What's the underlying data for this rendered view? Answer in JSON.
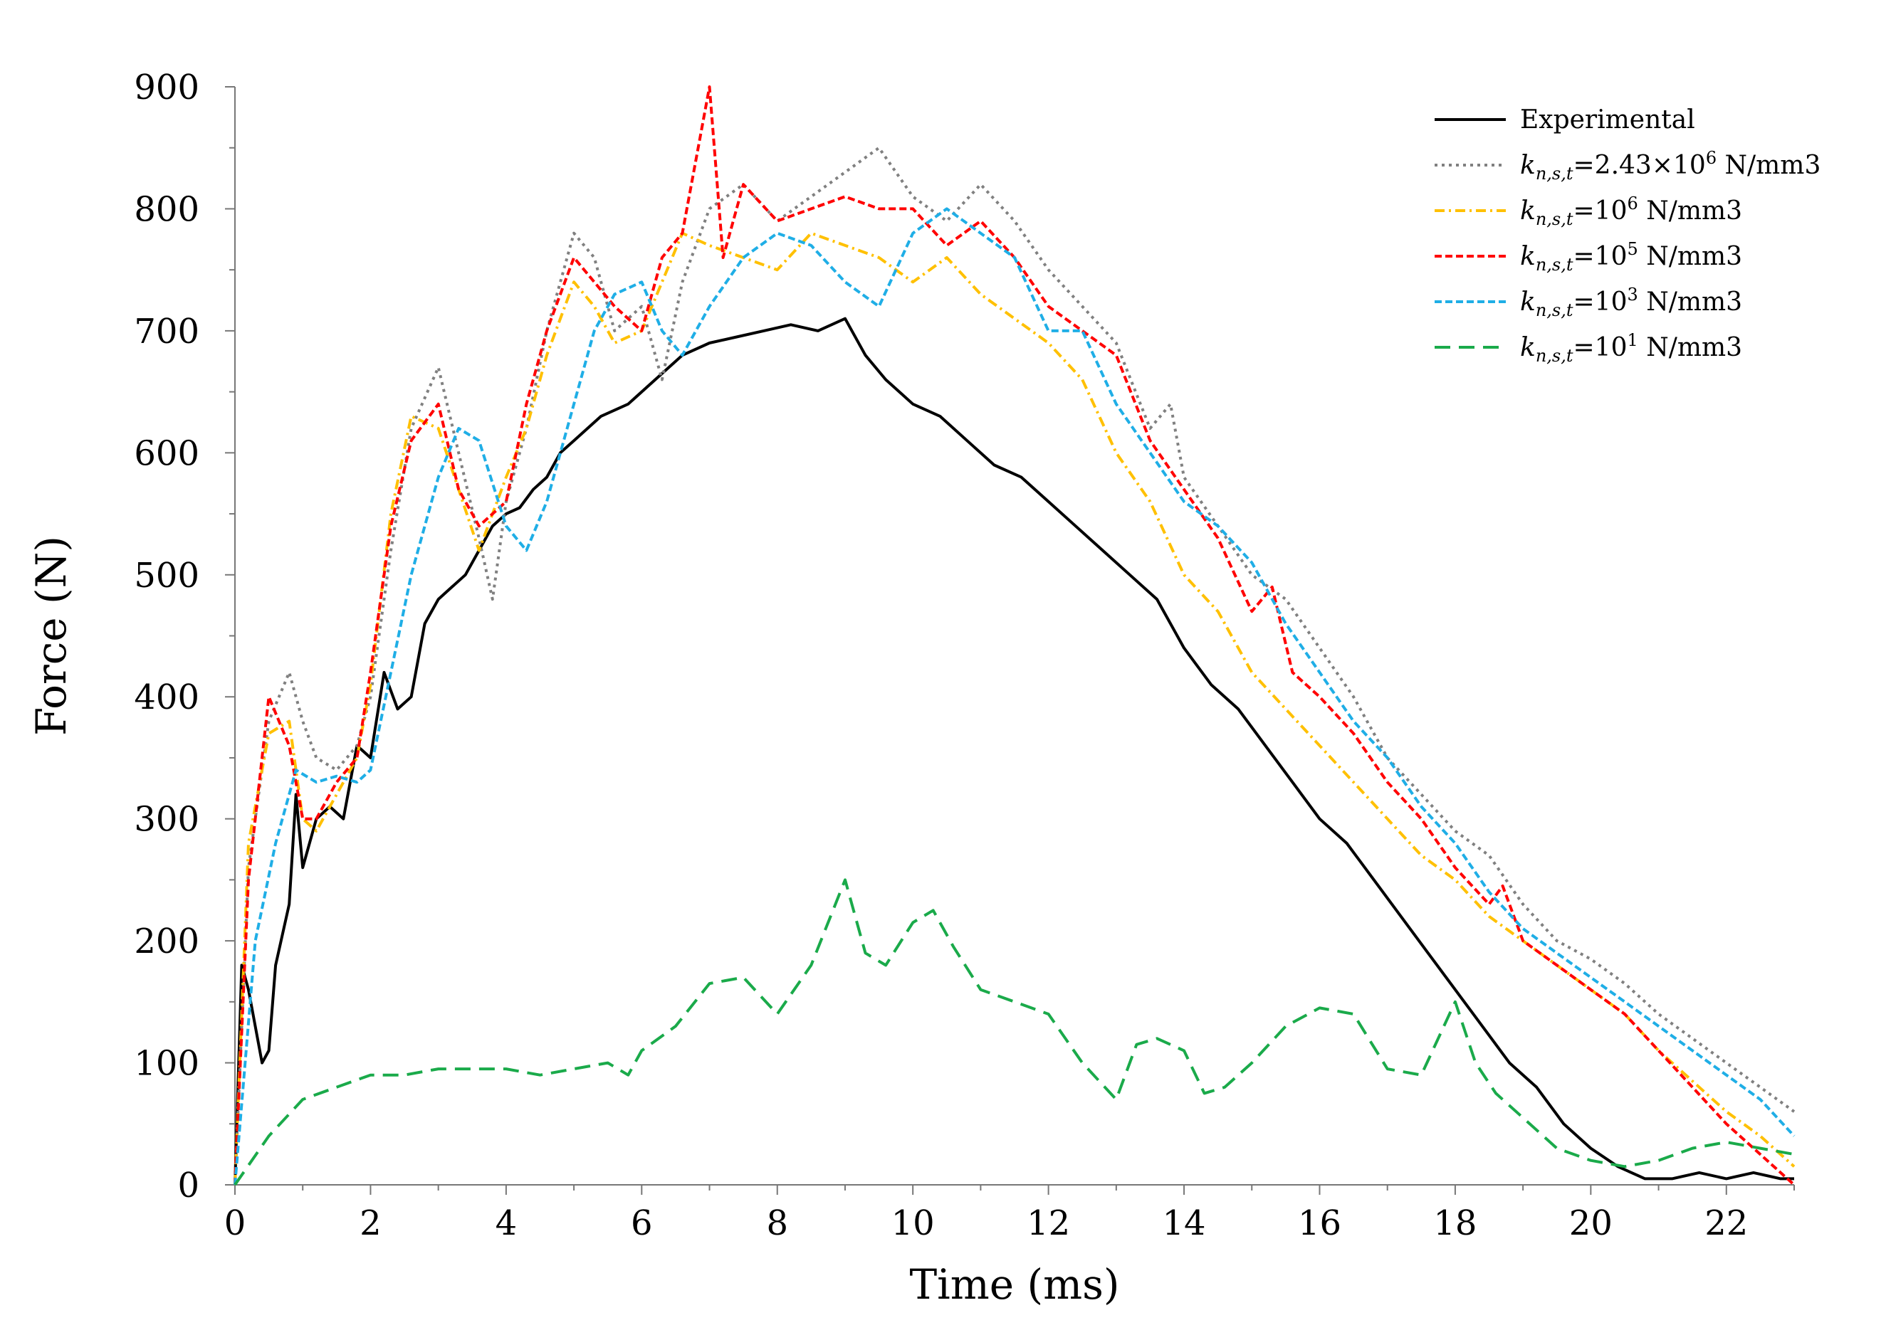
{
  "chart_data": {
    "type": "line",
    "title": "",
    "xlabel": "Time (ms)",
    "ylabel": "Force (N)",
    "xlim": [
      0,
      23
    ],
    "ylim": [
      0,
      900
    ],
    "xticks": [
      0,
      2,
      4,
      6,
      8,
      10,
      12,
      14,
      16,
      18,
      20,
      22
    ],
    "yticks": [
      0,
      100,
      200,
      300,
      400,
      500,
      600,
      700,
      800,
      900
    ],
    "xtick_labels": [
      "0",
      "2",
      "4",
      "6",
      "8",
      "10",
      "12",
      "14",
      "16",
      "18",
      "20",
      "22"
    ],
    "ytick_labels": [
      "0",
      "100",
      "200",
      "300",
      "400",
      "500",
      "600",
      "700",
      "800",
      "900"
    ],
    "grid": false,
    "legend_position": "top-right",
    "series": [
      {
        "name": "Experimental",
        "legend": {
          "k": "k",
          "sub": "",
          "mid": "Experimental",
          "sup": "",
          "tail": ""
        },
        "color": "#000000",
        "dash": "",
        "width": 4,
        "x": [
          0,
          0.1,
          0.2,
          0.4,
          0.5,
          0.6,
          0.8,
          0.9,
          1.0,
          1.2,
          1.4,
          1.6,
          1.8,
          2.0,
          2.2,
          2.4,
          2.6,
          2.8,
          3.0,
          3.2,
          3.4,
          3.6,
          3.8,
          4.0,
          4.2,
          4.4,
          4.6,
          4.8,
          5.0,
          5.4,
          5.8,
          6.2,
          6.6,
          7.0,
          7.4,
          7.8,
          8.2,
          8.6,
          9.0,
          9.3,
          9.6,
          10.0,
          10.4,
          10.8,
          11.2,
          11.6,
          12.0,
          12.4,
          12.8,
          13.2,
          13.6,
          14.0,
          14.4,
          14.8,
          15.2,
          15.6,
          16.0,
          16.4,
          16.8,
          17.2,
          17.6,
          18.0,
          18.4,
          18.8,
          19.2,
          19.6,
          20.0,
          20.4,
          20.8,
          21.2,
          21.6,
          22.0,
          22.4,
          22.8,
          23.0
        ],
        "y": [
          0,
          180,
          160,
          100,
          110,
          180,
          230,
          320,
          260,
          300,
          310,
          300,
          360,
          350,
          420,
          390,
          400,
          460,
          480,
          490,
          500,
          520,
          540,
          550,
          555,
          570,
          580,
          600,
          610,
          630,
          640,
          660,
          680,
          690,
          695,
          700,
          705,
          700,
          710,
          680,
          660,
          640,
          630,
          610,
          590,
          580,
          560,
          540,
          520,
          500,
          480,
          440,
          410,
          390,
          360,
          330,
          300,
          280,
          250,
          220,
          190,
          160,
          130,
          100,
          80,
          50,
          30,
          15,
          5,
          5,
          10,
          5,
          10,
          5,
          5
        ]
      },
      {
        "name": "k_n,s,t=2.43×10^6 N/mm^3",
        "legend": {
          "k": "k",
          "sub": "n,s,t",
          "mid": "=2.43×10",
          "sup": "6",
          "tail": " N/mm3"
        },
        "color": "#808080",
        "dash": "4,6",
        "width": 4,
        "x": [
          0,
          0.2,
          0.5,
          0.8,
          1.0,
          1.2,
          1.5,
          1.8,
          2.0,
          2.3,
          2.6,
          3.0,
          3.3,
          3.6,
          3.8,
          4.0,
          4.3,
          4.6,
          5.0,
          5.3,
          5.6,
          6.0,
          6.3,
          6.6,
          7.0,
          7.5,
          8.0,
          8.5,
          9.0,
          9.5,
          10.0,
          10.5,
          11.0,
          11.5,
          12.0,
          12.5,
          13.0,
          13.5,
          13.8,
          14.0,
          14.5,
          15.0,
          15.5,
          16.0,
          16.5,
          17.0,
          17.5,
          18.0,
          18.5,
          19.0,
          19.5,
          20.0,
          20.5,
          21.0,
          21.5,
          22.0,
          22.5,
          23.0
        ],
        "y": [
          0,
          260,
          380,
          420,
          380,
          350,
          340,
          360,
          400,
          520,
          620,
          670,
          600,
          530,
          480,
          560,
          620,
          700,
          780,
          760,
          700,
          720,
          660,
          740,
          800,
          820,
          790,
          810,
          830,
          850,
          810,
          790,
          820,
          790,
          750,
          720,
          690,
          620,
          640,
          580,
          540,
          500,
          480,
          440,
          400,
          350,
          320,
          290,
          270,
          230,
          200,
          185,
          165,
          140,
          120,
          100,
          80,
          60
        ]
      },
      {
        "name": "k_n,s,t=10^6 N/mm^3",
        "legend": {
          "k": "k",
          "sub": "n,s,t",
          "mid": "=10",
          "sup": "6",
          "tail": " N/mm3"
        },
        "color": "#FFC000",
        "dash": "14,6,3,6",
        "width": 4,
        "x": [
          0,
          0.2,
          0.5,
          0.8,
          1.0,
          1.2,
          1.5,
          1.8,
          2.0,
          2.3,
          2.6,
          3.0,
          3.3,
          3.6,
          4.0,
          4.3,
          4.6,
          5.0,
          5.3,
          5.6,
          6.0,
          6.3,
          6.6,
          7.0,
          7.5,
          8.0,
          8.5,
          9.0,
          9.5,
          10.0,
          10.5,
          11.0,
          11.5,
          12.0,
          12.5,
          13.0,
          13.5,
          14.0,
          14.5,
          15.0,
          15.5,
          16.0,
          16.5,
          17.0,
          17.5,
          18.0,
          18.5,
          19.0,
          19.5,
          20.0,
          20.5,
          21.0,
          21.5,
          22.0,
          22.5,
          23.0
        ],
        "y": [
          0,
          280,
          370,
          380,
          300,
          290,
          320,
          350,
          410,
          550,
          630,
          620,
          570,
          520,
          580,
          620,
          680,
          740,
          720,
          690,
          700,
          740,
          780,
          770,
          760,
          750,
          780,
          770,
          760,
          740,
          760,
          730,
          710,
          690,
          660,
          600,
          560,
          500,
          470,
          420,
          390,
          360,
          330,
          300,
          270,
          250,
          220,
          200,
          180,
          160,
          140,
          110,
          85,
          60,
          40,
          15
        ]
      },
      {
        "name": "k_n,s,t=10^5 N/mm^3",
        "legend": {
          "k": "k",
          "sub": "n,s,t",
          "mid": "=10",
          "sup": "5",
          "tail": " N/mm3"
        },
        "color": "#FF0000",
        "dash": "10,5",
        "width": 4,
        "x": [
          0,
          0.2,
          0.5,
          0.8,
          1.0,
          1.2,
          1.5,
          1.8,
          2.0,
          2.3,
          2.6,
          3.0,
          3.3,
          3.6,
          4.0,
          4.3,
          4.6,
          5.0,
          5.3,
          5.6,
          6.0,
          6.3,
          6.6,
          7.0,
          7.2,
          7.5,
          8.0,
          8.5,
          9.0,
          9.5,
          10.0,
          10.5,
          11.0,
          11.5,
          12.0,
          12.5,
          13.0,
          13.5,
          14.0,
          14.5,
          15.0,
          15.3,
          15.6,
          16.0,
          16.5,
          17.0,
          17.5,
          18.0,
          18.5,
          18.7,
          19.0,
          19.5,
          20.0,
          20.5,
          21.0,
          21.5,
          22.0,
          22.5,
          23.0
        ],
        "y": [
          0,
          250,
          400,
          360,
          300,
          300,
          330,
          350,
          420,
          540,
          610,
          640,
          570,
          540,
          560,
          640,
          700,
          760,
          740,
          720,
          700,
          760,
          780,
          900,
          760,
          820,
          790,
          800,
          810,
          800,
          800,
          770,
          790,
          760,
          720,
          700,
          680,
          610,
          570,
          530,
          470,
          490,
          420,
          400,
          370,
          330,
          300,
          260,
          230,
          245,
          200,
          180,
          160,
          140,
          110,
          80,
          50,
          25,
          0
        ]
      },
      {
        "name": "k_n,s,t=10^3 N/mm^3",
        "legend": {
          "k": "k",
          "sub": "n,s,t",
          "mid": "=10",
          "sup": "3",
          "tail": " N/mm3"
        },
        "color": "#1FAEE6",
        "dash": "10,5",
        "width": 4,
        "x": [
          0,
          0.3,
          0.6,
          0.9,
          1.2,
          1.5,
          1.8,
          2.0,
          2.3,
          2.6,
          3.0,
          3.3,
          3.6,
          4.0,
          4.3,
          4.6,
          5.0,
          5.3,
          5.6,
          6.0,
          6.3,
          6.6,
          7.0,
          7.5,
          8.0,
          8.5,
          9.0,
          9.5,
          10.0,
          10.5,
          11.0,
          11.5,
          12.0,
          12.5,
          13.0,
          13.5,
          14.0,
          14.5,
          15.0,
          15.5,
          16.0,
          16.5,
          17.0,
          17.5,
          18.0,
          18.5,
          19.0,
          19.5,
          20.0,
          20.5,
          21.0,
          21.5,
          22.0,
          22.5,
          23.0
        ],
        "y": [
          0,
          200,
          280,
          340,
          330,
          335,
          330,
          340,
          420,
          500,
          580,
          620,
          610,
          540,
          520,
          560,
          640,
          700,
          730,
          740,
          700,
          680,
          720,
          760,
          780,
          770,
          740,
          720,
          780,
          800,
          780,
          760,
          700,
          700,
          640,
          600,
          560,
          540,
          510,
          460,
          420,
          380,
          350,
          310,
          280,
          240,
          210,
          190,
          170,
          150,
          130,
          110,
          90,
          70,
          40
        ]
      },
      {
        "name": "k_n,s,t=10^1 N/mm^3",
        "legend": {
          "k": "k",
          "sub": "n,s,t",
          "mid": "=10",
          "sup": "1",
          "tail": " N/mm3"
        },
        "color": "#1AAA4A",
        "dash": "22,12",
        "width": 4,
        "x": [
          0,
          0.5,
          1.0,
          1.5,
          2.0,
          2.5,
          3.0,
          3.5,
          4.0,
          4.5,
          5.0,
          5.5,
          5.8,
          6.0,
          6.5,
          7.0,
          7.5,
          8.0,
          8.5,
          9.0,
          9.3,
          9.6,
          10.0,
          10.3,
          10.6,
          11.0,
          11.5,
          12.0,
          12.5,
          13.0,
          13.3,
          13.6,
          14.0,
          14.3,
          14.6,
          15.0,
          15.5,
          16.0,
          16.5,
          17.0,
          17.5,
          18.0,
          18.3,
          18.6,
          19.0,
          19.5,
          20.0,
          20.5,
          21.0,
          21.5,
          22.0,
          22.5,
          23.0
        ],
        "y": [
          0,
          40,
          70,
          80,
          90,
          90,
          95,
          95,
          95,
          90,
          95,
          100,
          90,
          110,
          130,
          165,
          170,
          140,
          180,
          250,
          190,
          180,
          215,
          225,
          195,
          160,
          150,
          140,
          100,
          70,
          115,
          120,
          110,
          75,
          80,
          100,
          130,
          145,
          140,
          95,
          90,
          150,
          100,
          75,
          55,
          30,
          20,
          15,
          20,
          30,
          35,
          30,
          25
        ]
      }
    ]
  }
}
